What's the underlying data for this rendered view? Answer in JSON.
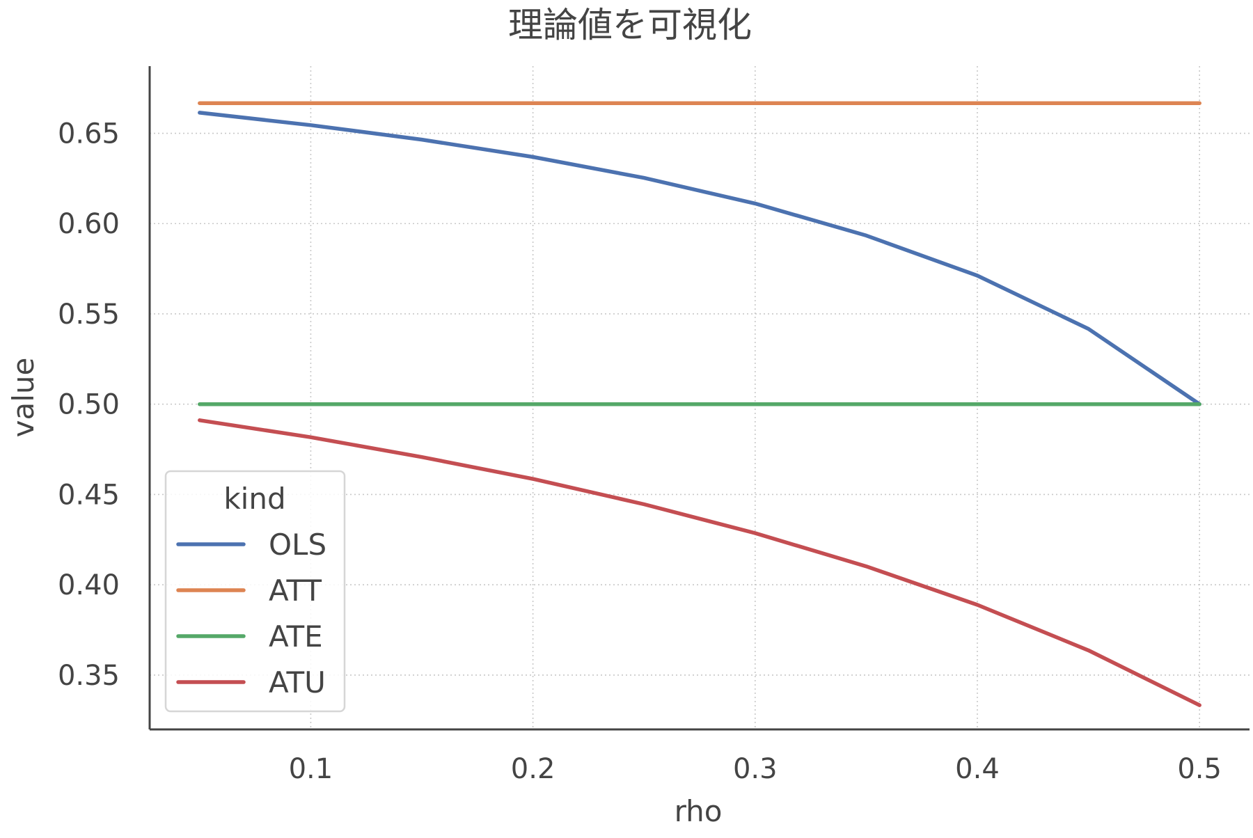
{
  "chart_data": {
    "type": "line",
    "title": "理論値を可視化",
    "xlabel": "rho",
    "ylabel": "value",
    "xlim": [
      0.0275,
      0.5225
    ],
    "ylim": [
      0.3199,
      0.6872
    ],
    "x_ticks": [
      0.1,
      0.2,
      0.3,
      0.4,
      0.5
    ],
    "x_tick_labels": [
      "0.1",
      "0.2",
      "0.3",
      "0.4",
      "0.5"
    ],
    "y_ticks": [
      0.35,
      0.4,
      0.45,
      0.5,
      0.55,
      0.6,
      0.65
    ],
    "y_tick_labels": [
      "0.35",
      "0.40",
      "0.45",
      "0.50",
      "0.55",
      "0.60",
      "0.65"
    ],
    "grid": true,
    "legend": {
      "title": "kind",
      "position": "lower-left"
    },
    "x": [
      0.05,
      0.1,
      0.15,
      0.2,
      0.25,
      0.3,
      0.35,
      0.4,
      0.45,
      0.5
    ],
    "series": [
      {
        "name": "OLS",
        "color": "#4c72b0",
        "values": [
          0.6614,
          0.6545,
          0.6465,
          0.6369,
          0.6253,
          0.6111,
          0.5934,
          0.5712,
          0.5417,
          0.5
        ]
      },
      {
        "name": "ATT",
        "color": "#dd8452",
        "values": [
          0.6667,
          0.6667,
          0.6667,
          0.6667,
          0.6667,
          0.6667,
          0.6667,
          0.6667,
          0.6667,
          0.6667
        ]
      },
      {
        "name": "ATE",
        "color": "#55a868",
        "values": [
          0.5,
          0.5,
          0.5,
          0.5,
          0.5,
          0.5,
          0.5,
          0.5,
          0.5,
          0.5
        ]
      },
      {
        "name": "ATU",
        "color": "#c44e52",
        "values": [
          0.4911,
          0.4817,
          0.4707,
          0.4586,
          0.4446,
          0.4286,
          0.4102,
          0.3889,
          0.3637,
          0.3333
        ]
      }
    ]
  }
}
